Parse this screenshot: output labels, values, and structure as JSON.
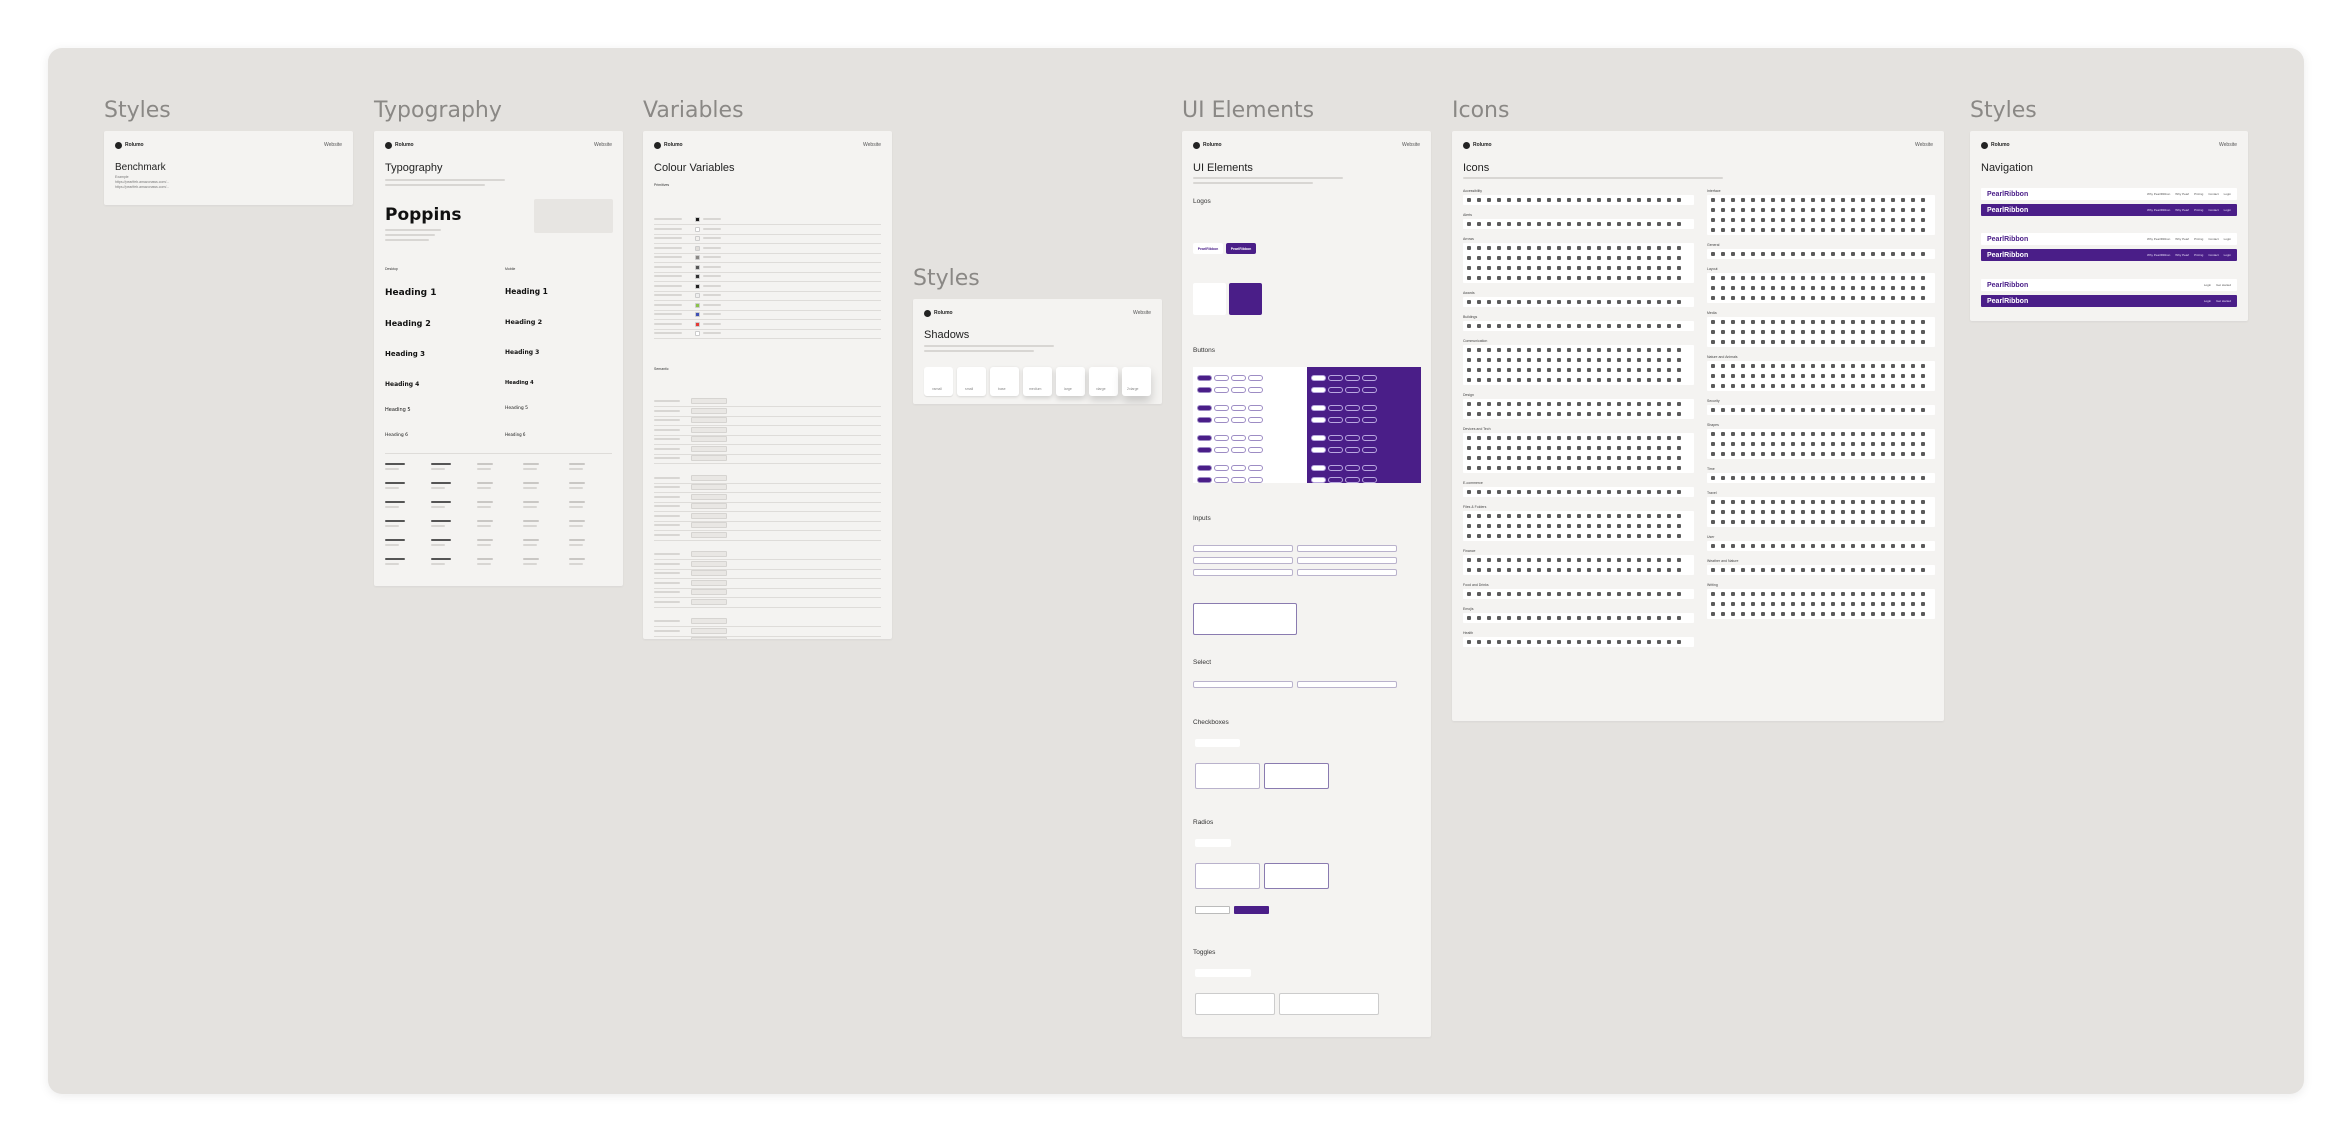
{
  "frames": {
    "styles_benchmark": {
      "label": "Styles",
      "brand": "Rolumo",
      "nav_link": "Website",
      "heading": "Benchmark",
      "lines": [
        "Example",
        "https://pearlfeb.amazonaws.com/...",
        "https://pearlfeb.amazonaws.com/..."
      ]
    },
    "typography": {
      "label": "Typography",
      "brand": "Rolumo",
      "nav_link": "Website",
      "heading": "Typography",
      "font_name": "Poppins",
      "col_desktop": "Desktop",
      "col_mobile": "Mobile",
      "headings": [
        "Heading 1",
        "Heading 2",
        "Heading 3",
        "Heading 4",
        "Heading 5",
        "Heading 6"
      ]
    },
    "variables": {
      "label": "Variables",
      "brand": "Rolumo",
      "nav_link": "Website",
      "heading": "Colour Variables",
      "sub_primitives": "Primitives",
      "sub_semantic": "Semantic"
    },
    "shadows": {
      "label": "Styles",
      "brand": "Rolumo",
      "nav_link": "Website",
      "heading": "Shadows",
      "boxes": [
        "xsmall",
        "small",
        "base",
        "medium",
        "large",
        "xlarge",
        "2xlarge"
      ]
    },
    "ui_elements": {
      "label": "UI Elements",
      "brand": "Rolumo",
      "nav_link": "Website",
      "heading": "UI Elements",
      "sections": [
        "Logos",
        "Buttons",
        "Inputs",
        "Select",
        "Checkboxes",
        "Radios",
        "Toggles"
      ],
      "logo_text": "PearlRibbon",
      "logo_text_dark": "PearlRibbon"
    },
    "icons": {
      "label": "Icons",
      "brand": "Rolumo",
      "nav_link": "Website",
      "heading": "Icons",
      "left_groups": [
        "Accessibility",
        "Alerts",
        "Arrows",
        "Awards",
        "Buildings",
        "Communication",
        "Design",
        "Devices and Tech",
        "E-commerce",
        "Files & Folders",
        "Finance",
        "Food and Drinks",
        "Emojis",
        "Health"
      ],
      "right_groups": [
        "Interface",
        "General",
        "Layout",
        "Media",
        "Nature and Animals",
        "Security",
        "Shapes",
        "Time",
        "Travel",
        "User",
        "Weather and Nature",
        "Writing"
      ]
    },
    "navigation": {
      "label": "Styles",
      "brand": "Rolumo",
      "nav_link": "Website",
      "heading": "Navigation",
      "logo": "PearlRibbon",
      "links": [
        "Why PearlRibbon",
        "Why Pearl",
        "Pricing",
        "Contact",
        "Login"
      ],
      "cta": "Get started"
    }
  },
  "colors": {
    "canvas": "#e4e2df",
    "frame": "#f4f3f1",
    "accent": "#4a1e88",
    "title": "#8a8885"
  }
}
